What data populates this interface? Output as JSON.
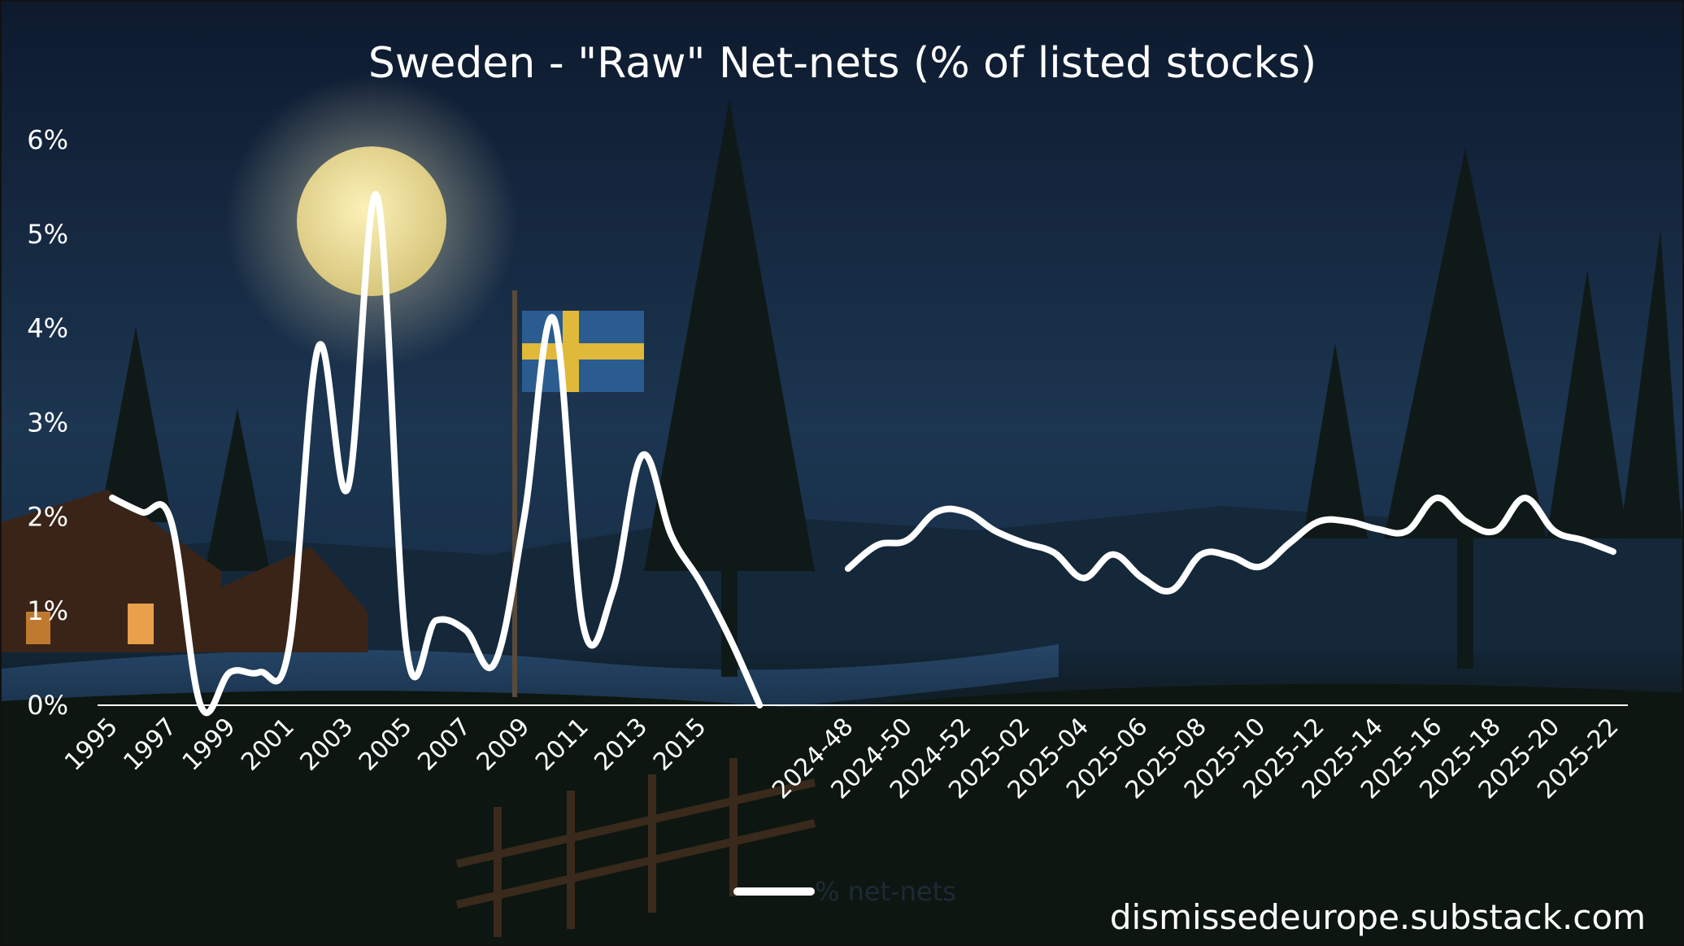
{
  "colors": {
    "line": "#ffffff",
    "sky_top": "#0d1a2e",
    "sky_mid": "#1d3650",
    "ground": "#0c1410"
  },
  "chart_data": {
    "type": "line",
    "title": "Sweden - \"Raw\" Net-nets (% of listed stocks)",
    "ylim": [
      0,
      6
    ],
    "y_ticks": [
      "0%",
      "1%",
      "2%",
      "3%",
      "4%",
      "5%",
      "6%"
    ],
    "y_tick_values": [
      0,
      1,
      2,
      3,
      4,
      5,
      6
    ],
    "legend": {
      "label": "% net-nets",
      "position": "bottom"
    },
    "grid": false,
    "x": [
      "1995",
      "1996",
      "1997",
      "1998",
      "1999",
      "2000",
      "2001",
      "2002",
      "2003",
      "2004",
      "2005",
      "2006",
      "2007",
      "2008",
      "2009",
      "2010",
      "2011",
      "2012",
      "2013",
      "2014",
      "2015",
      "2016",
      "2017",
      "",
      "",
      "2024-48",
      "2024-49",
      "2024-50",
      "2024-51",
      "2024-52",
      "2025-01",
      "2025-02",
      "2025-03",
      "2025-04",
      "2025-05",
      "2025-06",
      "2025-07",
      "2025-08",
      "2025-09",
      "2025-10",
      "2025-11",
      "2025-12",
      "2025-13",
      "2025-14",
      "2025-15",
      "2025-16",
      "2025-17",
      "2025-18",
      "2025-19",
      "2025-20",
      "2025-21",
      "2025-22"
    ],
    "x_tick_labels": [
      "1995",
      "1997",
      "1999",
      "2001",
      "2003",
      "2005",
      "2007",
      "2009",
      "2011",
      "2013",
      "2015",
      "2024-48",
      "2024-50",
      "2024-52",
      "2025-02",
      "2025-04",
      "2025-06",
      "2025-08",
      "2025-10",
      "2025-12",
      "2025-14",
      "2025-16",
      "2025-18",
      "2025-20",
      "2025-22"
    ],
    "series": [
      {
        "name": "% net-nets",
        "segments": [
          {
            "start_index": 0,
            "values": [
              2.2,
              2.05,
              1.95,
              0.0,
              0.35,
              0.35,
              0.6,
              3.8,
              2.3,
              5.4,
              0.6,
              0.9,
              0.8,
              0.45,
              2.0,
              4.1,
              0.85,
              1.2,
              2.65,
              1.8,
              1.3,
              0.7,
              0.0
            ]
          },
          {
            "start_index": 25,
            "values": [
              1.45,
              1.7,
              1.75,
              2.05,
              2.05,
              1.85,
              1.72,
              1.62,
              1.35,
              1.6,
              1.35,
              1.22,
              1.6,
              1.58,
              1.47,
              1.72,
              1.95,
              1.95,
              1.87,
              1.85,
              2.2,
              1.95,
              1.85,
              2.2,
              1.85,
              1.75,
              1.63
            ]
          }
        ]
      }
    ]
  },
  "watermark": "dismissedeurope.substack.com"
}
